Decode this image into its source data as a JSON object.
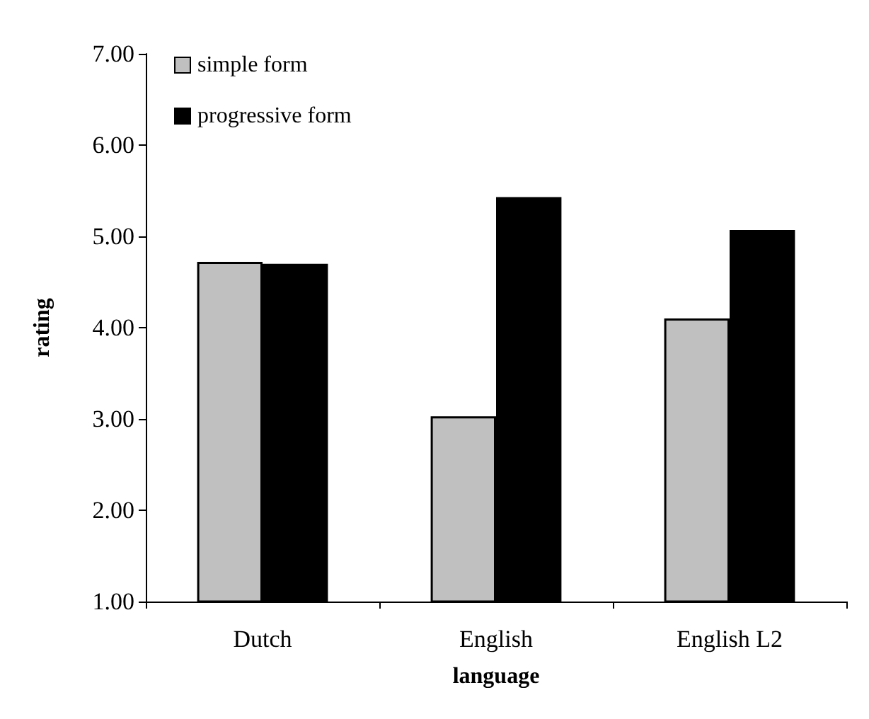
{
  "chart_data": {
    "type": "bar",
    "xlabel": "language",
    "ylabel": "rating",
    "categories": [
      "Dutch",
      "English",
      "English L2"
    ],
    "series": [
      {
        "name": "simple form",
        "color": "#c0c0c0",
        "values": [
          4.72,
          3.03,
          4.1
        ]
      },
      {
        "name": "progressive form",
        "color": "#000000",
        "values": [
          4.7,
          5.43,
          5.07
        ]
      }
    ],
    "ylim": [
      1,
      7
    ],
    "yticks": [
      {
        "value": 1,
        "label": "1.00"
      },
      {
        "value": 2,
        "label": "2.00"
      },
      {
        "value": 3,
        "label": "3.00"
      },
      {
        "value": 4,
        "label": "4.00"
      },
      {
        "value": 5,
        "label": "5.00"
      },
      {
        "value": 6,
        "label": "6.00"
      },
      {
        "value": 7,
        "label": "7.00"
      }
    ],
    "grid": false,
    "legend": "top left"
  }
}
